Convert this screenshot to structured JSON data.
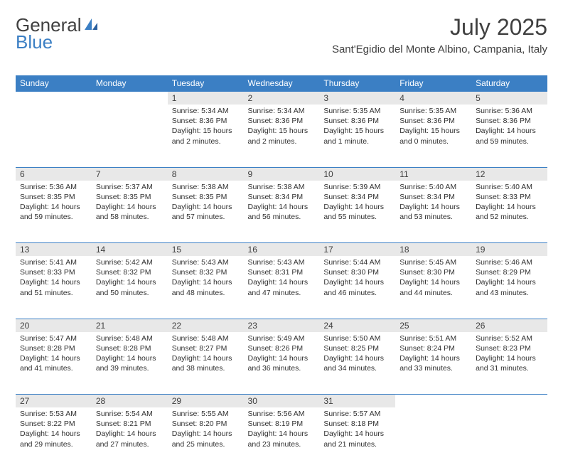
{
  "brand": {
    "part1": "General",
    "part2": "Blue"
  },
  "title": "July 2025",
  "location": "Sant'Egidio del Monte Albino, Campania, Italy",
  "day_headers": [
    "Sunday",
    "Monday",
    "Tuesday",
    "Wednesday",
    "Thursday",
    "Friday",
    "Saturday"
  ],
  "colors": {
    "header_bg": "#3b7fc4",
    "header_text": "#ffffff",
    "daynum_bg": "#e8e8e8",
    "border": "#3b7fc4",
    "text": "#303030",
    "brand_gray": "#404040",
    "brand_blue": "#3b7fc4",
    "page_bg": "#ffffff"
  },
  "typography": {
    "title_fontsize": 32,
    "location_fontsize": 15,
    "header_fontsize": 12,
    "daynum_fontsize": 12,
    "cell_fontsize": 10.5
  },
  "weeks": [
    [
      null,
      null,
      {
        "n": "1",
        "sunrise": "5:34 AM",
        "sunset": "8:36 PM",
        "daylight": "15 hours and 2 minutes."
      },
      {
        "n": "2",
        "sunrise": "5:34 AM",
        "sunset": "8:36 PM",
        "daylight": "15 hours and 2 minutes."
      },
      {
        "n": "3",
        "sunrise": "5:35 AM",
        "sunset": "8:36 PM",
        "daylight": "15 hours and 1 minute."
      },
      {
        "n": "4",
        "sunrise": "5:35 AM",
        "sunset": "8:36 PM",
        "daylight": "15 hours and 0 minutes."
      },
      {
        "n": "5",
        "sunrise": "5:36 AM",
        "sunset": "8:36 PM",
        "daylight": "14 hours and 59 minutes."
      }
    ],
    [
      {
        "n": "6",
        "sunrise": "5:36 AM",
        "sunset": "8:35 PM",
        "daylight": "14 hours and 59 minutes."
      },
      {
        "n": "7",
        "sunrise": "5:37 AM",
        "sunset": "8:35 PM",
        "daylight": "14 hours and 58 minutes."
      },
      {
        "n": "8",
        "sunrise": "5:38 AM",
        "sunset": "8:35 PM",
        "daylight": "14 hours and 57 minutes."
      },
      {
        "n": "9",
        "sunrise": "5:38 AM",
        "sunset": "8:34 PM",
        "daylight": "14 hours and 56 minutes."
      },
      {
        "n": "10",
        "sunrise": "5:39 AM",
        "sunset": "8:34 PM",
        "daylight": "14 hours and 55 minutes."
      },
      {
        "n": "11",
        "sunrise": "5:40 AM",
        "sunset": "8:34 PM",
        "daylight": "14 hours and 53 minutes."
      },
      {
        "n": "12",
        "sunrise": "5:40 AM",
        "sunset": "8:33 PM",
        "daylight": "14 hours and 52 minutes."
      }
    ],
    [
      {
        "n": "13",
        "sunrise": "5:41 AM",
        "sunset": "8:33 PM",
        "daylight": "14 hours and 51 minutes."
      },
      {
        "n": "14",
        "sunrise": "5:42 AM",
        "sunset": "8:32 PM",
        "daylight": "14 hours and 50 minutes."
      },
      {
        "n": "15",
        "sunrise": "5:43 AM",
        "sunset": "8:32 PM",
        "daylight": "14 hours and 48 minutes."
      },
      {
        "n": "16",
        "sunrise": "5:43 AM",
        "sunset": "8:31 PM",
        "daylight": "14 hours and 47 minutes."
      },
      {
        "n": "17",
        "sunrise": "5:44 AM",
        "sunset": "8:30 PM",
        "daylight": "14 hours and 46 minutes."
      },
      {
        "n": "18",
        "sunrise": "5:45 AM",
        "sunset": "8:30 PM",
        "daylight": "14 hours and 44 minutes."
      },
      {
        "n": "19",
        "sunrise": "5:46 AM",
        "sunset": "8:29 PM",
        "daylight": "14 hours and 43 minutes."
      }
    ],
    [
      {
        "n": "20",
        "sunrise": "5:47 AM",
        "sunset": "8:28 PM",
        "daylight": "14 hours and 41 minutes."
      },
      {
        "n": "21",
        "sunrise": "5:48 AM",
        "sunset": "8:28 PM",
        "daylight": "14 hours and 39 minutes."
      },
      {
        "n": "22",
        "sunrise": "5:48 AM",
        "sunset": "8:27 PM",
        "daylight": "14 hours and 38 minutes."
      },
      {
        "n": "23",
        "sunrise": "5:49 AM",
        "sunset": "8:26 PM",
        "daylight": "14 hours and 36 minutes."
      },
      {
        "n": "24",
        "sunrise": "5:50 AM",
        "sunset": "8:25 PM",
        "daylight": "14 hours and 34 minutes."
      },
      {
        "n": "25",
        "sunrise": "5:51 AM",
        "sunset": "8:24 PM",
        "daylight": "14 hours and 33 minutes."
      },
      {
        "n": "26",
        "sunrise": "5:52 AM",
        "sunset": "8:23 PM",
        "daylight": "14 hours and 31 minutes."
      }
    ],
    [
      {
        "n": "27",
        "sunrise": "5:53 AM",
        "sunset": "8:22 PM",
        "daylight": "14 hours and 29 minutes."
      },
      {
        "n": "28",
        "sunrise": "5:54 AM",
        "sunset": "8:21 PM",
        "daylight": "14 hours and 27 minutes."
      },
      {
        "n": "29",
        "sunrise": "5:55 AM",
        "sunset": "8:20 PM",
        "daylight": "14 hours and 25 minutes."
      },
      {
        "n": "30",
        "sunrise": "5:56 AM",
        "sunset": "8:19 PM",
        "daylight": "14 hours and 23 minutes."
      },
      {
        "n": "31",
        "sunrise": "5:57 AM",
        "sunset": "8:18 PM",
        "daylight": "14 hours and 21 minutes."
      },
      null,
      null
    ]
  ],
  "labels": {
    "sunrise": "Sunrise:",
    "sunset": "Sunset:",
    "daylight": "Daylight:"
  }
}
